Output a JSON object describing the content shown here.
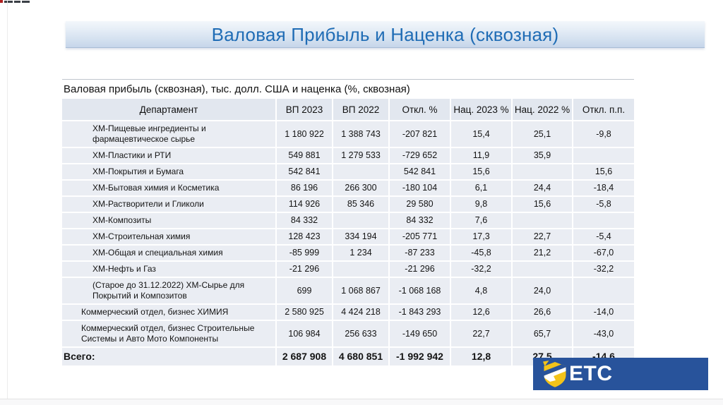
{
  "page": {
    "title": "Валовая Прибыль и Наценка (сквозная)"
  },
  "table": {
    "subtitle": "Валовая прибыль (сквозная), тыс. долл. США и наценка (%, сквозная)",
    "columns": [
      "Департамент",
      "ВП 2023",
      "ВП 2022",
      "Откл. %",
      "Нац. 2023 %",
      "Нац. 2022 %",
      "Откл. п.п."
    ],
    "rows": [
      {
        "label": "ХМ-Пищевые ингредиенты и фармацевтическое сырье",
        "indent": 2,
        "total": false,
        "values": [
          "1 180 922",
          "1 388 743",
          "-207 821",
          "15,4",
          "25,1",
          "-9,8"
        ]
      },
      {
        "label": "ХМ-Пластики и РТИ",
        "indent": 2,
        "total": false,
        "values": [
          "549 881",
          "1 279 533",
          "-729 652",
          "11,9",
          "35,9",
          ""
        ]
      },
      {
        "label": "ХМ-Покрытия и Бумага",
        "indent": 2,
        "total": false,
        "values": [
          "542 841",
          "",
          "542 841",
          "15,6",
          "",
          "15,6"
        ]
      },
      {
        "label": "ХМ-Бытовая химия и Косметика",
        "indent": 2,
        "total": false,
        "values": [
          "86 196",
          "266 300",
          "-180 104",
          "6,1",
          "24,4",
          "-18,4"
        ]
      },
      {
        "label": "ХМ-Растворители и Гликоли",
        "indent": 2,
        "total": false,
        "values": [
          "114 926",
          "85 346",
          "29 580",
          "9,8",
          "15,6",
          "-5,8"
        ]
      },
      {
        "label": "ХМ-Композиты",
        "indent": 2,
        "total": false,
        "values": [
          "84 332",
          "",
          "84 332",
          "7,6",
          "",
          ""
        ]
      },
      {
        "label": "ХМ-Строительная химия",
        "indent": 2,
        "total": false,
        "values": [
          "128 423",
          "334 194",
          "-205 771",
          "17,3",
          "22,7",
          "-5,4"
        ]
      },
      {
        "label": "ХМ-Общая и специальная химия",
        "indent": 2,
        "total": false,
        "values": [
          "-85 999",
          "1 234",
          "-87 233",
          "-45,8",
          "21,2",
          "-67,0"
        ]
      },
      {
        "label": "ХМ-Нефть и Газ",
        "indent": 2,
        "total": false,
        "values": [
          "-21 296",
          "",
          "-21 296",
          "-32,2",
          "",
          "-32,2"
        ]
      },
      {
        "label": "(Старое до 31.12.2022) ХМ-Сырье для Покрытий и Композитов",
        "indent": 2,
        "total": false,
        "values": [
          "699",
          "1 068 867",
          "-1 068 168",
          "4,8",
          "24,0",
          ""
        ]
      },
      {
        "label": "Коммерческий отдел, бизнес ХИМИЯ",
        "indent": 1,
        "total": false,
        "values": [
          "2 580 925",
          "4 424 218",
          "-1 843 293",
          "12,6",
          "26,6",
          "-14,0"
        ]
      },
      {
        "label": "Коммерческий отдел, бизнес Строительные Системы и Авто Мото Компоненты",
        "indent": 1,
        "total": false,
        "values": [
          "106 984",
          "256 633",
          "-149 650",
          "22,7",
          "65,7",
          "-43,0"
        ]
      },
      {
        "label": "Всего:",
        "indent": 0,
        "total": true,
        "values": [
          "2 687 908",
          "4 680 851",
          "-1 992 942",
          "12,8",
          "27,5",
          "-14,6"
        ]
      }
    ]
  },
  "logo": {
    "text": "ETC",
    "box_color": "#28539b",
    "shield_color": "#f3c319"
  },
  "colors": {
    "title_text": "#1f6cb5",
    "banner_gradient_bottom": "#c6d6ea",
    "row_fill": "#eaedf3",
    "header_fill": "#e2e7ef"
  }
}
